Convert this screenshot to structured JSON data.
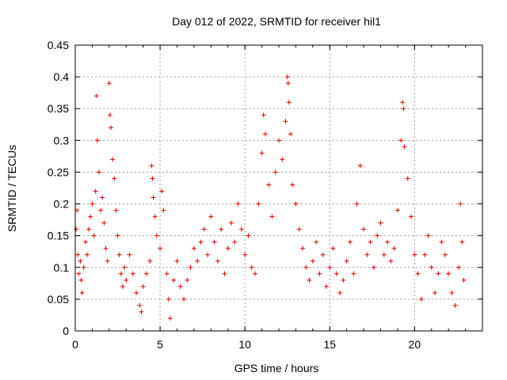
{
  "chart_data": {
    "type": "scatter",
    "title": "Day 012 of 2022, SRMTID for receiver hil1",
    "xlabel": "GPS time / hours",
    "ylabel": "SRMTID / TECUs",
    "xlim": [
      0,
      24
    ],
    "ylim": [
      0,
      0.45
    ],
    "xticks": [
      "0",
      "5",
      "10",
      "15",
      "20"
    ],
    "yticks": [
      "0",
      "0.05",
      "0.1",
      "0.15",
      "0.2",
      "0.25",
      "0.3",
      "0.35",
      "0.4",
      "0.45"
    ],
    "grid": true,
    "marker": "plus",
    "color": "#e00000",
    "series": [
      {
        "points": [
          [
            0.05,
            0.16
          ],
          [
            0.1,
            0.19
          ],
          [
            0.15,
            0.12
          ],
          [
            0.2,
            0.09
          ],
          [
            0.3,
            0.11
          ],
          [
            0.35,
            0.08
          ],
          [
            0.4,
            0.06
          ],
          [
            0.5,
            0.1
          ],
          [
            0.6,
            0.14
          ],
          [
            0.7,
            0.12
          ],
          [
            0.8,
            0.16
          ],
          [
            0.9,
            0.18
          ],
          [
            1.0,
            0.2
          ],
          [
            1.1,
            0.15
          ],
          [
            1.2,
            0.22
          ],
          [
            1.25,
            0.37
          ],
          [
            1.3,
            0.3
          ],
          [
            1.4,
            0.25
          ],
          [
            1.5,
            0.19
          ],
          [
            1.6,
            0.21
          ],
          [
            1.7,
            0.17
          ],
          [
            1.8,
            0.13
          ],
          [
            1.9,
            0.11
          ],
          [
            2.0,
            0.39
          ],
          [
            2.05,
            0.34
          ],
          [
            2.1,
            0.32
          ],
          [
            2.2,
            0.27
          ],
          [
            2.3,
            0.24
          ],
          [
            2.4,
            0.19
          ],
          [
            2.5,
            0.15
          ],
          [
            2.6,
            0.12
          ],
          [
            2.7,
            0.09
          ],
          [
            2.8,
            0.07
          ],
          [
            2.9,
            0.1
          ],
          [
            3.0,
            0.08
          ],
          [
            3.2,
            0.12
          ],
          [
            3.4,
            0.09
          ],
          [
            3.6,
            0.06
          ],
          [
            3.8,
            0.04
          ],
          [
            3.9,
            0.03
          ],
          [
            4.0,
            0.07
          ],
          [
            4.2,
            0.09
          ],
          [
            4.4,
            0.11
          ],
          [
            4.5,
            0.26
          ],
          [
            4.55,
            0.24
          ],
          [
            4.6,
            0.21
          ],
          [
            4.7,
            0.18
          ],
          [
            4.8,
            0.15
          ],
          [
            5.0,
            0.13
          ],
          [
            5.1,
            0.22
          ],
          [
            5.2,
            0.19
          ],
          [
            5.4,
            0.09
          ],
          [
            5.5,
            0.05
          ],
          [
            5.6,
            0.02
          ],
          [
            5.8,
            0.08
          ],
          [
            6.0,
            0.11
          ],
          [
            6.2,
            0.07
          ],
          [
            6.4,
            0.05
          ],
          [
            6.6,
            0.08
          ],
          [
            6.8,
            0.1
          ],
          [
            7.0,
            0.13
          ],
          [
            7.2,
            0.11
          ],
          [
            7.4,
            0.14
          ],
          [
            7.6,
            0.16
          ],
          [
            7.8,
            0.12
          ],
          [
            8.0,
            0.18
          ],
          [
            8.2,
            0.14
          ],
          [
            8.4,
            0.11
          ],
          [
            8.6,
            0.16
          ],
          [
            8.8,
            0.09
          ],
          [
            9.0,
            0.13
          ],
          [
            9.2,
            0.17
          ],
          [
            9.4,
            0.14
          ],
          [
            9.6,
            0.2
          ],
          [
            9.8,
            0.16
          ],
          [
            10.0,
            0.12
          ],
          [
            10.2,
            0.15
          ],
          [
            10.4,
            0.1
          ],
          [
            10.6,
            0.09
          ],
          [
            10.8,
            0.2
          ],
          [
            11.0,
            0.28
          ],
          [
            11.1,
            0.34
          ],
          [
            11.2,
            0.31
          ],
          [
            11.4,
            0.23
          ],
          [
            11.6,
            0.18
          ],
          [
            11.8,
            0.25
          ],
          [
            12.0,
            0.3
          ],
          [
            12.2,
            0.27
          ],
          [
            12.4,
            0.33
          ],
          [
            12.5,
            0.4
          ],
          [
            12.55,
            0.39
          ],
          [
            12.6,
            0.36
          ],
          [
            12.7,
            0.31
          ],
          [
            12.8,
            0.23
          ],
          [
            13.0,
            0.2
          ],
          [
            13.2,
            0.16
          ],
          [
            13.4,
            0.13
          ],
          [
            13.6,
            0.1
          ],
          [
            13.8,
            0.08
          ],
          [
            14.0,
            0.11
          ],
          [
            14.2,
            0.14
          ],
          [
            14.4,
            0.09
          ],
          [
            14.6,
            0.12
          ],
          [
            14.8,
            0.07
          ],
          [
            15.0,
            0.1
          ],
          [
            15.2,
            0.13
          ],
          [
            15.4,
            0.09
          ],
          [
            15.6,
            0.06
          ],
          [
            15.8,
            0.08
          ],
          [
            16.0,
            0.11
          ],
          [
            16.2,
            0.14
          ],
          [
            16.4,
            0.09
          ],
          [
            16.6,
            0.2
          ],
          [
            16.8,
            0.26
          ],
          [
            17.0,
            0.16
          ],
          [
            17.2,
            0.12
          ],
          [
            17.4,
            0.14
          ],
          [
            17.6,
            0.1
          ],
          [
            17.8,
            0.15
          ],
          [
            18.0,
            0.17
          ],
          [
            18.2,
            0.12
          ],
          [
            18.4,
            0.14
          ],
          [
            18.6,
            0.11
          ],
          [
            18.8,
            0.13
          ],
          [
            19.0,
            0.19
          ],
          [
            19.2,
            0.3
          ],
          [
            19.3,
            0.36
          ],
          [
            19.35,
            0.35
          ],
          [
            19.4,
            0.29
          ],
          [
            19.6,
            0.24
          ],
          [
            19.8,
            0.18
          ],
          [
            20.0,
            0.12
          ],
          [
            20.2,
            0.09
          ],
          [
            20.4,
            0.05
          ],
          [
            20.6,
            0.12
          ],
          [
            20.8,
            0.15
          ],
          [
            21.0,
            0.1
          ],
          [
            21.2,
            0.06
          ],
          [
            21.4,
            0.09
          ],
          [
            21.6,
            0.14
          ],
          [
            21.8,
            0.12
          ],
          [
            22.0,
            0.09
          ],
          [
            22.2,
            0.06
          ],
          [
            22.4,
            0.04
          ],
          [
            22.6,
            0.1
          ],
          [
            22.7,
            0.2
          ],
          [
            22.8,
            0.14
          ],
          [
            22.9,
            0.08
          ]
        ]
      }
    ]
  }
}
